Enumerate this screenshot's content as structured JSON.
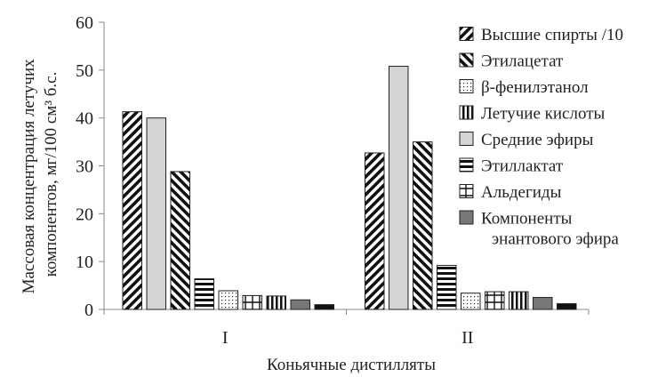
{
  "chart_data": {
    "type": "bar",
    "title": "",
    "xlabel": "Коньячные дистилляты",
    "ylabel": "Массовая концентрация летучих компонентов, мг/100 см³ б.с.",
    "ylabel_lines": [
      "Массовая концентрация летучих",
      "компонентов, мг/100 см³ б.с."
    ],
    "ylim": [
      0,
      60
    ],
    "yticks": [
      0,
      10,
      20,
      30,
      40,
      50,
      60
    ],
    "grid": false,
    "legend_position": "right",
    "categories": [
      "I",
      "II"
    ],
    "series": [
      {
        "name": "Высшие спирты /10",
        "pattern": "diag-up",
        "values": [
          41.3,
          32.7
        ]
      },
      {
        "name": "Средние эфиры",
        "pattern": "solid-light",
        "values": [
          40.0,
          50.8
        ]
      },
      {
        "name": "Этилацетат",
        "pattern": "diag-down",
        "values": [
          28.8,
          35.0
        ]
      },
      {
        "name": "Этиллактат",
        "pattern": "horizontal",
        "values": [
          6.4,
          9.2
        ]
      },
      {
        "name": "β-фенилэтанол",
        "pattern": "dots",
        "values": [
          3.9,
          3.4
        ]
      },
      {
        "name": "Альдегиды",
        "pattern": "boxes",
        "values": [
          2.9,
          3.7
        ]
      },
      {
        "name": "Летучие кислоты",
        "pattern": "vertical",
        "values": [
          2.8,
          3.7
        ]
      },
      {
        "name": "Компоненты энантового эфира",
        "name_lines": [
          "Компоненты",
          "энантового эфира"
        ],
        "pattern": "solid-gray",
        "values": [
          2.0,
          2.5
        ]
      },
      {
        "name": "",
        "pattern": "solid-dark",
        "values": [
          1.0,
          1.2
        ]
      }
    ],
    "legend_order": [
      "Высшие спирты /10",
      "Этилацетат",
      "β-фенилэтанол",
      "Летучие кислоты",
      "Средние эфиры",
      "Этиллактат",
      "Альдегиды",
      "Компоненты энантового эфира"
    ]
  }
}
